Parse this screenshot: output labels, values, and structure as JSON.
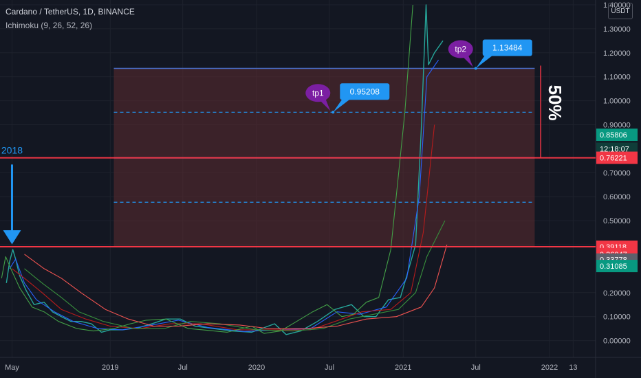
{
  "header": {
    "title": "Cardano / TetherUS, 1D, BINANCE",
    "indicator": "Ichimoku (9, 26, 52, 26)",
    "currency": "USDT"
  },
  "colors": {
    "background": "#131722",
    "grid": "#1e222d",
    "support_line": "#f23645",
    "box_fill": "#5c2b30",
    "box_border": "#4a6fc9",
    "annotation_blue": "#2196f3",
    "bubble_purple": "#7b1fa2",
    "price_tag_green": "#089981",
    "price_tag_red": "#f23645",
    "price_tag_gray": "#5d606b"
  },
  "chart_data": {
    "type": "line",
    "symbol": "ADAUSDT",
    "interval": "1D",
    "ylim": [
      -0.07,
      1.42
    ],
    "xlim": [
      "2018-04-01",
      "2022-04-26"
    ],
    "y_ticks": [
      {
        "value": 1.4,
        "label": "1.40000"
      },
      {
        "value": 1.3,
        "label": "1.30000"
      },
      {
        "value": 1.2,
        "label": "1.20000"
      },
      {
        "value": 1.1,
        "label": "1.10000"
      },
      {
        "value": 1.0,
        "label": "1.00000"
      },
      {
        "value": 0.9,
        "label": "0.90000"
      },
      {
        "value": 0.7,
        "label": "0.70000"
      },
      {
        "value": 0.6,
        "label": "0.60000"
      },
      {
        "value": 0.5,
        "label": "0.50000"
      },
      {
        "value": 0.4,
        "label": "0.40000"
      },
      {
        "value": 0.2,
        "label": "0.20000"
      },
      {
        "value": 0.1,
        "label": "0.10000"
      },
      {
        "value": 0.0,
        "label": "0.00000"
      }
    ],
    "x_ticks": [
      {
        "value": "2018-05-01",
        "label": "May"
      },
      {
        "value": "2019-01-01",
        "label": "2019"
      },
      {
        "value": "2019-07-01",
        "label": "Jul"
      },
      {
        "value": "2020-01-01",
        "label": "2020"
      },
      {
        "value": "2020-07-01",
        "label": "Jul"
      },
      {
        "value": "2021-01-01",
        "label": "2021"
      },
      {
        "value": "2021-07-01",
        "label": "Jul"
      },
      {
        "value": "2022-01-01",
        "label": "2022"
      },
      {
        "value": "2022-03-01",
        "label": "13"
      }
    ],
    "price_tags": [
      {
        "value": 0.85806,
        "label": "0.85806",
        "color": "#089981"
      },
      {
        "value": 0.8,
        "label": "12:18:07",
        "color": "#0f3d39"
      },
      {
        "value": 0.76221,
        "label": "0.76221",
        "color": "#f23645"
      },
      {
        "value": 0.39118,
        "label": "0.39118",
        "color": "#f23645"
      },
      {
        "value": 0.36047,
        "label": "0.36047",
        "color": "#f23645"
      },
      {
        "value": 0.33778,
        "label": "0.33778",
        "color": "#5d606b"
      },
      {
        "value": 0.31085,
        "label": "0.31085",
        "color": "#089981"
      }
    ],
    "horizontal_lines": [
      {
        "value": 0.76221,
        "color": "#f23645"
      },
      {
        "value": 0.39118,
        "color": "#f23645"
      }
    ],
    "box": {
      "x0": "2019-01-10",
      "x1": "2021-11-25",
      "y0": 0.39118,
      "y1": 1.13484
    },
    "box_dashed_levels": [
      0.95208,
      0.5768
    ],
    "box_mid_level": 0.76221,
    "measure": {
      "x": "2021-12-10",
      "y0": 0.76221,
      "y1": 1.13484,
      "label": "50%"
    },
    "annotations": {
      "tp1": {
        "label": "tp1",
        "value_label": "0.95208",
        "value": 0.95208,
        "x": "2020-07-10"
      },
      "tp2": {
        "label": "tp2",
        "value_label": "1.13484",
        "value": 1.13484,
        "x": "2021-07-01"
      },
      "year_label": {
        "text": "2018",
        "x": "2018-05-01",
        "y": 0.78
      }
    },
    "series": [
      {
        "name": "ADAUSDT",
        "color": "#26a69a",
        "points": [
          [
            "2018-04-17",
            0.24
          ],
          [
            "2018-04-25",
            0.33
          ],
          [
            "2018-05-03",
            0.38
          ],
          [
            "2018-05-10",
            0.34
          ],
          [
            "2018-05-20",
            0.27
          ],
          [
            "2018-06-05",
            0.21
          ],
          [
            "2018-06-25",
            0.15
          ],
          [
            "2018-07-20",
            0.16
          ],
          [
            "2018-08-10",
            0.12
          ],
          [
            "2018-09-01",
            0.1
          ],
          [
            "2018-09-25",
            0.08
          ],
          [
            "2018-10-20",
            0.08
          ],
          [
            "2018-11-15",
            0.07
          ],
          [
            "2018-12-10",
            0.035
          ],
          [
            "2019-01-01",
            0.045
          ],
          [
            "2019-02-01",
            0.045
          ],
          [
            "2019-03-15",
            0.055
          ],
          [
            "2019-04-15",
            0.07
          ],
          [
            "2019-05-20",
            0.09
          ],
          [
            "2019-06-25",
            0.09
          ],
          [
            "2019-08-01",
            0.06
          ],
          [
            "2019-09-15",
            0.05
          ],
          [
            "2019-11-01",
            0.04
          ],
          [
            "2019-12-20",
            0.035
          ],
          [
            "2020-02-15",
            0.07
          ],
          [
            "2020-03-15",
            0.025
          ],
          [
            "2020-04-20",
            0.04
          ],
          [
            "2020-06-01",
            0.08
          ],
          [
            "2020-07-15",
            0.13
          ],
          [
            "2020-08-25",
            0.15
          ],
          [
            "2020-09-25",
            0.1
          ],
          [
            "2020-10-25",
            0.1
          ],
          [
            "2020-11-25",
            0.17
          ],
          [
            "2020-12-25",
            0.18
          ],
          [
            "2021-01-15",
            0.3
          ],
          [
            "2021-02-01",
            0.4
          ],
          [
            "2021-02-15",
            0.88
          ],
          [
            "2021-02-27",
            1.4
          ],
          [
            "2021-03-05",
            1.15
          ],
          [
            "2021-03-20",
            1.2
          ],
          [
            "2021-04-10",
            1.25
          ]
        ]
      },
      {
        "name": "Tenkan",
        "color": "#2962ff",
        "points": [
          [
            "2018-04-25",
            0.3
          ],
          [
            "2018-05-10",
            0.34
          ],
          [
            "2018-06-01",
            0.24
          ],
          [
            "2018-07-01",
            0.17
          ],
          [
            "2018-08-15",
            0.12
          ],
          [
            "2018-10-01",
            0.08
          ],
          [
            "2018-12-01",
            0.05
          ],
          [
            "2019-02-01",
            0.045
          ],
          [
            "2019-04-15",
            0.065
          ],
          [
            "2019-06-20",
            0.085
          ],
          [
            "2019-09-01",
            0.055
          ],
          [
            "2019-12-01",
            0.038
          ],
          [
            "2020-03-01",
            0.045
          ],
          [
            "2020-05-15",
            0.05
          ],
          [
            "2020-07-20",
            0.12
          ],
          [
            "2020-09-15",
            0.11
          ],
          [
            "2020-11-20",
            0.14
          ],
          [
            "2021-01-10",
            0.26
          ],
          [
            "2021-02-10",
            0.6
          ],
          [
            "2021-03-01",
            1.1
          ],
          [
            "2021-03-30",
            1.17
          ]
        ]
      },
      {
        "name": "Kijun",
        "color": "#b71c1c",
        "points": [
          [
            "2018-05-01",
            0.3
          ],
          [
            "2018-06-01",
            0.26
          ],
          [
            "2018-07-15",
            0.2
          ],
          [
            "2018-09-01",
            0.13
          ],
          [
            "2018-11-01",
            0.09
          ],
          [
            "2019-01-01",
            0.06
          ],
          [
            "2019-03-15",
            0.05
          ],
          [
            "2019-06-01",
            0.07
          ],
          [
            "2019-08-15",
            0.07
          ],
          [
            "2019-11-15",
            0.045
          ],
          [
            "2020-02-15",
            0.045
          ],
          [
            "2020-05-15",
            0.045
          ],
          [
            "2020-07-15",
            0.08
          ],
          [
            "2020-09-20",
            0.12
          ],
          [
            "2020-12-01",
            0.13
          ],
          [
            "2021-01-20",
            0.2
          ],
          [
            "2021-02-20",
            0.45
          ],
          [
            "2021-03-20",
            0.9
          ]
        ]
      },
      {
        "name": "Chikou",
        "color": "#43a047",
        "points": [
          [
            "2018-04-05",
            0.26
          ],
          [
            "2018-04-15",
            0.35
          ],
          [
            "2018-04-28",
            0.3
          ],
          [
            "2018-05-20",
            0.22
          ],
          [
            "2018-06-20",
            0.14
          ],
          [
            "2018-07-20",
            0.12
          ],
          [
            "2018-08-25",
            0.08
          ],
          [
            "2018-10-10",
            0.05
          ],
          [
            "2018-11-20",
            0.04
          ],
          [
            "2019-01-10",
            0.05
          ],
          [
            "2019-02-20",
            0.07
          ],
          [
            "2019-04-01",
            0.085
          ],
          [
            "2019-05-20",
            0.09
          ],
          [
            "2019-07-15",
            0.05
          ],
          [
            "2019-08-20",
            0.045
          ],
          [
            "2019-10-20",
            0.035
          ],
          [
            "2019-12-20",
            0.06
          ],
          [
            "2020-01-20",
            0.03
          ],
          [
            "2020-03-01",
            0.04
          ],
          [
            "2020-04-10",
            0.08
          ],
          [
            "2020-05-20",
            0.12
          ],
          [
            "2020-06-25",
            0.15
          ],
          [
            "2020-08-01",
            0.1
          ],
          [
            "2020-08-30",
            0.11
          ],
          [
            "2020-10-01",
            0.16
          ],
          [
            "2020-11-01",
            0.18
          ],
          [
            "2020-12-01",
            0.38
          ],
          [
            "2021-01-05",
            0.95
          ],
          [
            "2021-01-25",
            1.4
          ]
        ]
      },
      {
        "name": "Senkou A",
        "color": "#388e3c",
        "points": [
          [
            "2018-06-01",
            0.3
          ],
          [
            "2018-07-15",
            0.24
          ],
          [
            "2018-09-01",
            0.18
          ],
          [
            "2018-10-15",
            0.12
          ],
          [
            "2018-12-15",
            0.08
          ],
          [
            "2019-03-01",
            0.05
          ],
          [
            "2019-05-15",
            0.05
          ],
          [
            "2019-07-20",
            0.08
          ],
          [
            "2019-10-01",
            0.07
          ],
          [
            "2020-01-01",
            0.045
          ],
          [
            "2020-04-01",
            0.04
          ],
          [
            "2020-06-15",
            0.05
          ],
          [
            "2020-08-20",
            0.09
          ],
          [
            "2020-10-20",
            0.11
          ],
          [
            "2020-12-20",
            0.13
          ],
          [
            "2021-02-01",
            0.2
          ],
          [
            "2021-03-01",
            0.35
          ],
          [
            "2021-04-15",
            0.5
          ]
        ]
      },
      {
        "name": "Senkou B",
        "color": "#ef5350",
        "points": [
          [
            "2018-06-01",
            0.36
          ],
          [
            "2018-07-20",
            0.3
          ],
          [
            "2018-09-01",
            0.26
          ],
          [
            "2018-10-20",
            0.2
          ],
          [
            "2018-12-20",
            0.13
          ],
          [
            "2019-02-15",
            0.09
          ],
          [
            "2019-04-20",
            0.06
          ],
          [
            "2019-06-20",
            0.06
          ],
          [
            "2019-09-01",
            0.07
          ],
          [
            "2019-11-20",
            0.065
          ],
          [
            "2020-02-01",
            0.05
          ],
          [
            "2020-05-01",
            0.05
          ],
          [
            "2020-07-20",
            0.06
          ],
          [
            "2020-10-01",
            0.09
          ],
          [
            "2020-12-15",
            0.1
          ],
          [
            "2021-02-15",
            0.14
          ],
          [
            "2021-03-20",
            0.22
          ],
          [
            "2021-04-20",
            0.4
          ]
        ]
      }
    ]
  }
}
